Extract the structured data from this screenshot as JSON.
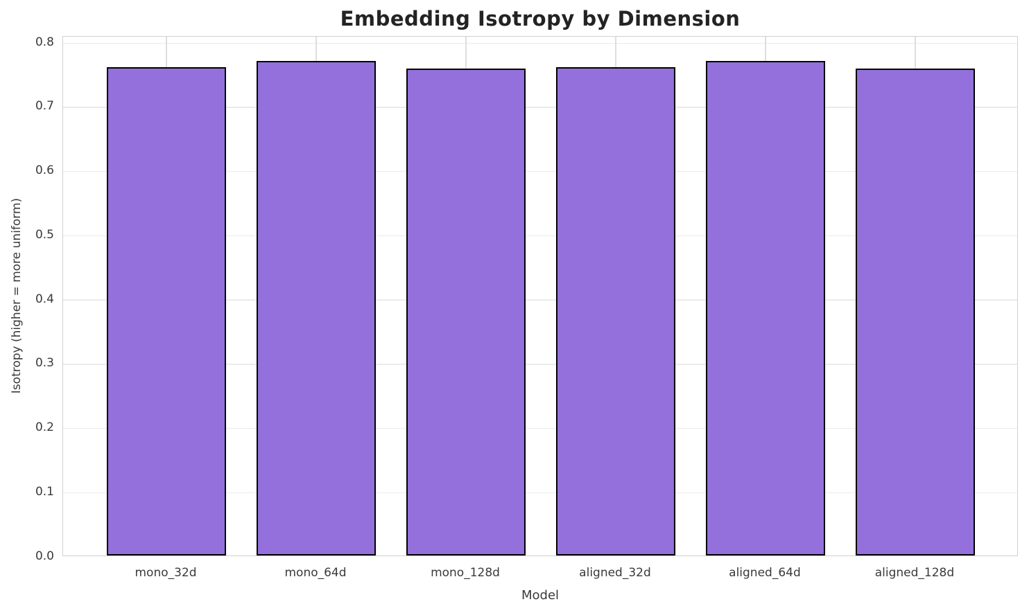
{
  "chart_data": {
    "type": "bar",
    "title": "Embedding Isotropy by Dimension",
    "xlabel": "Model",
    "ylabel": "Isotropy (higher = more uniform)",
    "categories": [
      "mono_32d",
      "mono_64d",
      "mono_128d",
      "aligned_32d",
      "aligned_64d",
      "aligned_128d"
    ],
    "values": [
      0.76,
      0.77,
      0.758,
      0.76,
      0.77,
      0.758
    ],
    "ylim": [
      0,
      0.81
    ],
    "yticks": [
      0.0,
      0.1,
      0.2,
      0.3,
      0.4,
      0.5,
      0.6,
      0.7,
      0.8
    ],
    "ytick_labels": [
      "0.0",
      "0.1",
      "0.2",
      "0.3",
      "0.4",
      "0.5",
      "0.6",
      "0.7",
      "0.8"
    ],
    "grid": true,
    "legend": "none",
    "bar_color": "#9370DB",
    "bar_edge_color": "#000000",
    "grid_color_h": "#ebebeb",
    "grid_color_v": "#dedede",
    "spine_color": "#d0d0d0",
    "tick_text_color": "#3a3a3a",
    "title_color": "#232323"
  }
}
